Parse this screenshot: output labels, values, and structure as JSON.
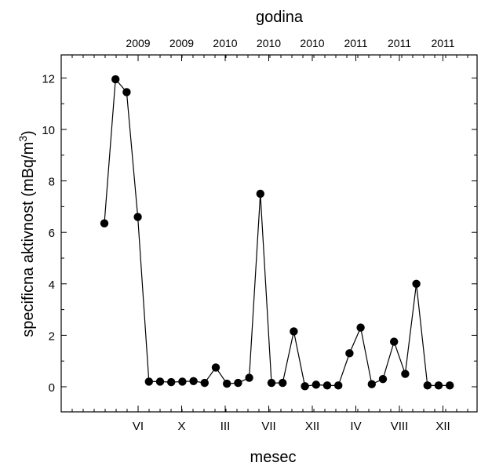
{
  "chart_data": {
    "type": "line",
    "title": "",
    "xlabel": "mesec",
    "ylabel": "specificna aktivnost (mBq/m",
    "ylabel_sup": "3",
    "ylabel_close": ")",
    "top_axis_label": "godina",
    "ylim": [
      -1,
      13
    ],
    "y_ticks": [
      0,
      2,
      4,
      6,
      8,
      10,
      12
    ],
    "x_tick_labels": [
      "VI",
      "X",
      "III",
      "VII",
      "XII",
      "IV",
      "VIII",
      "XII"
    ],
    "top_tick_labels": [
      "2009",
      "2009",
      "2010",
      "2010",
      "2010",
      "2011",
      "2011",
      "2011"
    ],
    "grid": false,
    "legend": "none",
    "marker": "filled-circle",
    "line_color": "#000000",
    "values": [
      6.35,
      11.95,
      11.45,
      6.6,
      0.2,
      0.2,
      0.18,
      0.2,
      0.22,
      0.15,
      0.75,
      0.12,
      0.15,
      0.35,
      7.5,
      0.15,
      0.15,
      2.15,
      0.02,
      0.08,
      0.05,
      0.05,
      1.3,
      2.3,
      0.1,
      0.3,
      1.75,
      0.5,
      4.0,
      0.05,
      0.05,
      0.05
    ]
  }
}
